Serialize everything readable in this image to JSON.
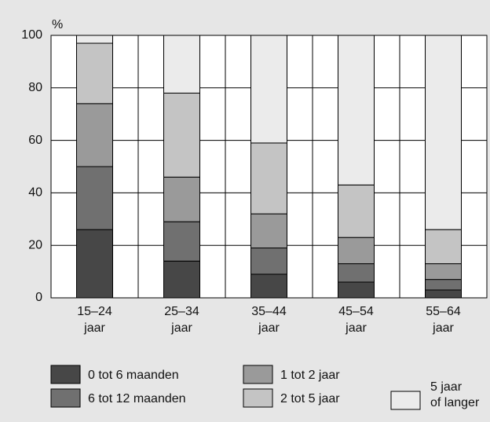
{
  "chart_data": {
    "type": "stacked_bar",
    "y_label": "%",
    "categories": [
      "15–24 jaar",
      "25–34 jaar",
      "35–44 jaar",
      "45–54 jaar",
      "55–64 jaar"
    ],
    "series": [
      {
        "name": "0 tot 6 maanden",
        "color": "#474747",
        "values": [
          26,
          14,
          9,
          6,
          3
        ]
      },
      {
        "name": "6 tot 12 maanden",
        "color": "#707070",
        "values": [
          24,
          15,
          10,
          7,
          4
        ]
      },
      {
        "name": "1 tot 2 jaar",
        "color": "#9a9a9a",
        "values": [
          24,
          17,
          13,
          10,
          6
        ]
      },
      {
        "name": "2 tot 5 jaar",
        "color": "#c4c4c4",
        "values": [
          23,
          32,
          27,
          20,
          13
        ]
      },
      {
        "name": "5 jaar of langer",
        "color": "#ebebeb",
        "values": [
          3,
          22,
          41,
          57,
          74
        ]
      }
    ],
    "ylim": [
      0,
      100
    ],
    "yticks": [
      0,
      20,
      40,
      60,
      80,
      100
    ],
    "grid": true
  }
}
